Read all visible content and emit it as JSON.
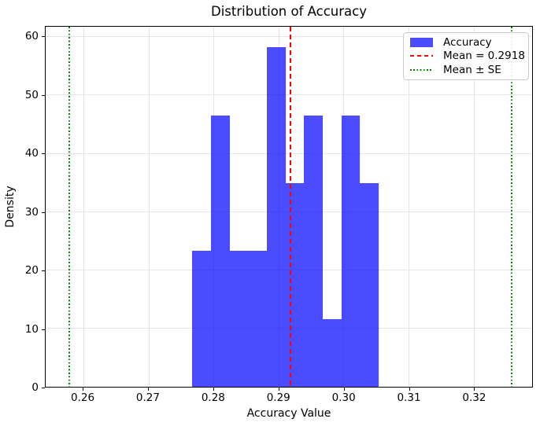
{
  "chart_data": {
    "type": "bar",
    "subtype": "histogram-density",
    "title": "Distribution of Accuracy",
    "xlabel": "Accuracy Value",
    "ylabel": "Density",
    "bin_edges": [
      0.276747,
      0.279611,
      0.282475,
      0.285339,
      0.288202,
      0.291066,
      0.29393,
      0.296794,
      0.299658,
      0.302522,
      0.305386
    ],
    "densities": [
      23.31,
      46.62,
      23.31,
      23.31,
      58.28,
      34.97,
      46.62,
      11.66,
      46.62,
      34.97
    ],
    "bar_color": "#0000FF",
    "bar_alpha": 0.7,
    "xlim": [
      0.2542,
      0.329
    ],
    "ylim": [
      0,
      61.8
    ],
    "xticks": [
      0.26,
      0.27,
      0.28,
      0.29,
      0.3,
      0.31,
      0.32
    ],
    "xtick_labels": [
      "0.26",
      "0.27",
      "0.28",
      "0.29",
      "0.30",
      "0.31",
      "0.32"
    ],
    "yticks": [
      0,
      10,
      20,
      30,
      40,
      50,
      60
    ],
    "ytick_labels": [
      "0",
      "10",
      "20",
      "30",
      "40",
      "50",
      "60"
    ],
    "grid": true,
    "grid_color": "#e6e6e6",
    "mean_line": {
      "value": 0.2918,
      "color": "#FF0000",
      "style": "dashed",
      "label": "Mean = 0.2918"
    },
    "se_lines": {
      "values": [
        0.2578,
        0.3258
      ],
      "color": "#008000",
      "style": "dotted",
      "label": "Mean ± SE"
    },
    "legend": {
      "position": "upper right",
      "entries": [
        {
          "label": "Accuracy",
          "marker": "patch",
          "color": "#0000FF"
        },
        {
          "label": "Mean = 0.2918",
          "marker": "dashed-line",
          "color": "#FF0000"
        },
        {
          "label": "Mean ± SE",
          "marker": "dotted-line",
          "color": "#008000"
        }
      ]
    }
  }
}
